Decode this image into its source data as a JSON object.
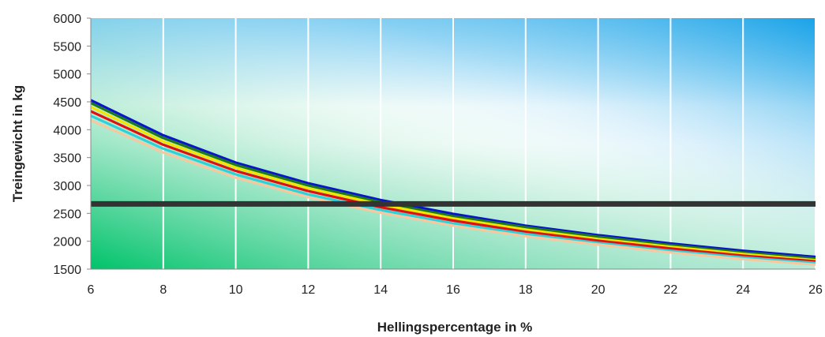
{
  "chart_data": {
    "type": "line",
    "xlabel": "Hellingspercentage in %",
    "ylabel": "Treingewicht in kg",
    "xlim": [
      6,
      26
    ],
    "ylim": [
      1500,
      6000
    ],
    "x_ticks": [
      6,
      8,
      10,
      12,
      14,
      16,
      18,
      20,
      22,
      24,
      26
    ],
    "y_ticks": [
      1500,
      2000,
      2500,
      3000,
      3500,
      4000,
      4500,
      5000,
      5500,
      6000
    ],
    "grid": "vertical",
    "x": [
      6,
      8,
      10,
      12,
      14,
      16,
      18,
      20,
      22,
      24,
      26
    ],
    "series": [
      {
        "color": "#0a14c8",
        "values": [
          4530,
          3900,
          3410,
          3040,
          2740,
          2490,
          2280,
          2110,
          1960,
          1830,
          1720
        ]
      },
      {
        "color": "#1e7a1e",
        "values": [
          4480,
          3850,
          3370,
          3000,
          2700,
          2450,
          2250,
          2080,
          1930,
          1800,
          1690
        ]
      },
      {
        "color": "#f2e600",
        "values": [
          4410,
          3790,
          3320,
          2950,
          2660,
          2410,
          2210,
          2040,
          1900,
          1770,
          1660
        ]
      },
      {
        "color": "#e01010",
        "values": [
          4330,
          3730,
          3260,
          2900,
          2610,
          2370,
          2170,
          2010,
          1870,
          1740,
          1640
        ]
      },
      {
        "color": "#30d0d8",
        "values": [
          4250,
          3660,
          3200,
          2840,
          2560,
          2320,
          2130,
          1970,
          1830,
          1710,
          1610
        ]
      },
      {
        "color": "#f5c8a0",
        "values": [
          4170,
          3590,
          3140,
          2790,
          2510,
          2280,
          2090,
          1940,
          1800,
          1680,
          1580
        ]
      }
    ],
    "reference_line": {
      "value": 2670,
      "color": "#333333"
    }
  }
}
